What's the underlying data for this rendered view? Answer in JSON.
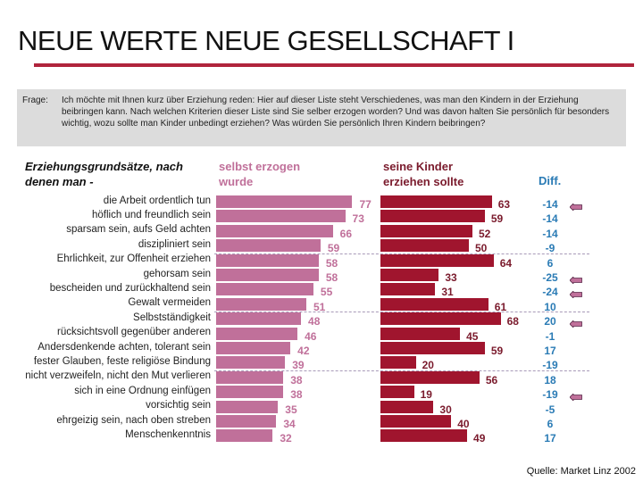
{
  "title": "NEUE WERTE NEUE GESELLSCHAFT I",
  "question": {
    "label": "Frage:",
    "text": "Ich möchte mit Ihnen kurz über Erziehung reden: Hier auf dieser Liste steht Verschiedenes, was man den Kindern in der Erziehung beibringen kann. Nach welchen Kriterien dieser Liste sind Sie selber erzogen worden? Und was davon halten Sie persönlich für besonders wichtig, wozu sollte man Kinder unbedingt erziehen? Was würden Sie persönlich Ihren Kindern beibringen?"
  },
  "source": "Quelle: Market Linz 2002",
  "chart_data": {
    "type": "bar",
    "orientation": "horizontal",
    "category_header": "Erziehungsgrundsätze, nach denen man -",
    "diff_header": "Diff.",
    "colors": {
      "selbst": "#c0709a",
      "kinder": "#a0152e",
      "diff": "#2a7bb5",
      "arrow": "#c0709a"
    },
    "categories": [
      "die Arbeit ordentlich tun",
      "höflich und freundlich sein",
      "sparsam sein, aufs Geld achten",
      "diszipliniert sein",
      "Ehrlichkeit, zur Offenheit erziehen",
      "gehorsam sein",
      "bescheiden und zurückhaltend sein",
      "Gewalt vermeiden",
      "Selbstständigkeit",
      "rücksichtsvoll gegenüber anderen",
      "Andersdenkende achten, tolerant sein",
      "fester Glauben, feste religiöse Bindung",
      "nicht verzweifeln, nicht den Mut verlieren",
      "sich in eine Ordnung einfügen",
      "vorsichtig sein",
      "ehrgeizig sein, nach oben streben",
      "Menschenkenntnis"
    ],
    "series": [
      {
        "name": "selbst erzogen wurde",
        "values": [
          77,
          73,
          66,
          59,
          58,
          58,
          55,
          51,
          48,
          46,
          42,
          39,
          38,
          38,
          35,
          34,
          32
        ]
      },
      {
        "name": "seine Kinder erziehen sollte",
        "values": [
          63,
          59,
          52,
          50,
          64,
          33,
          31,
          61,
          68,
          45,
          59,
          20,
          56,
          19,
          30,
          40,
          49
        ]
      }
    ],
    "diff": [
      "-14",
      "-14",
      "-14",
      "-9",
      "6",
      "-25",
      "-24",
      "10",
      "20",
      "-1",
      "17",
      "-19",
      "18",
      "-19",
      "-5",
      "6",
      "17"
    ],
    "arrow_rows": [
      0,
      5,
      6,
      8,
      13
    ],
    "group_separators_after": [
      3,
      7,
      11
    ]
  }
}
